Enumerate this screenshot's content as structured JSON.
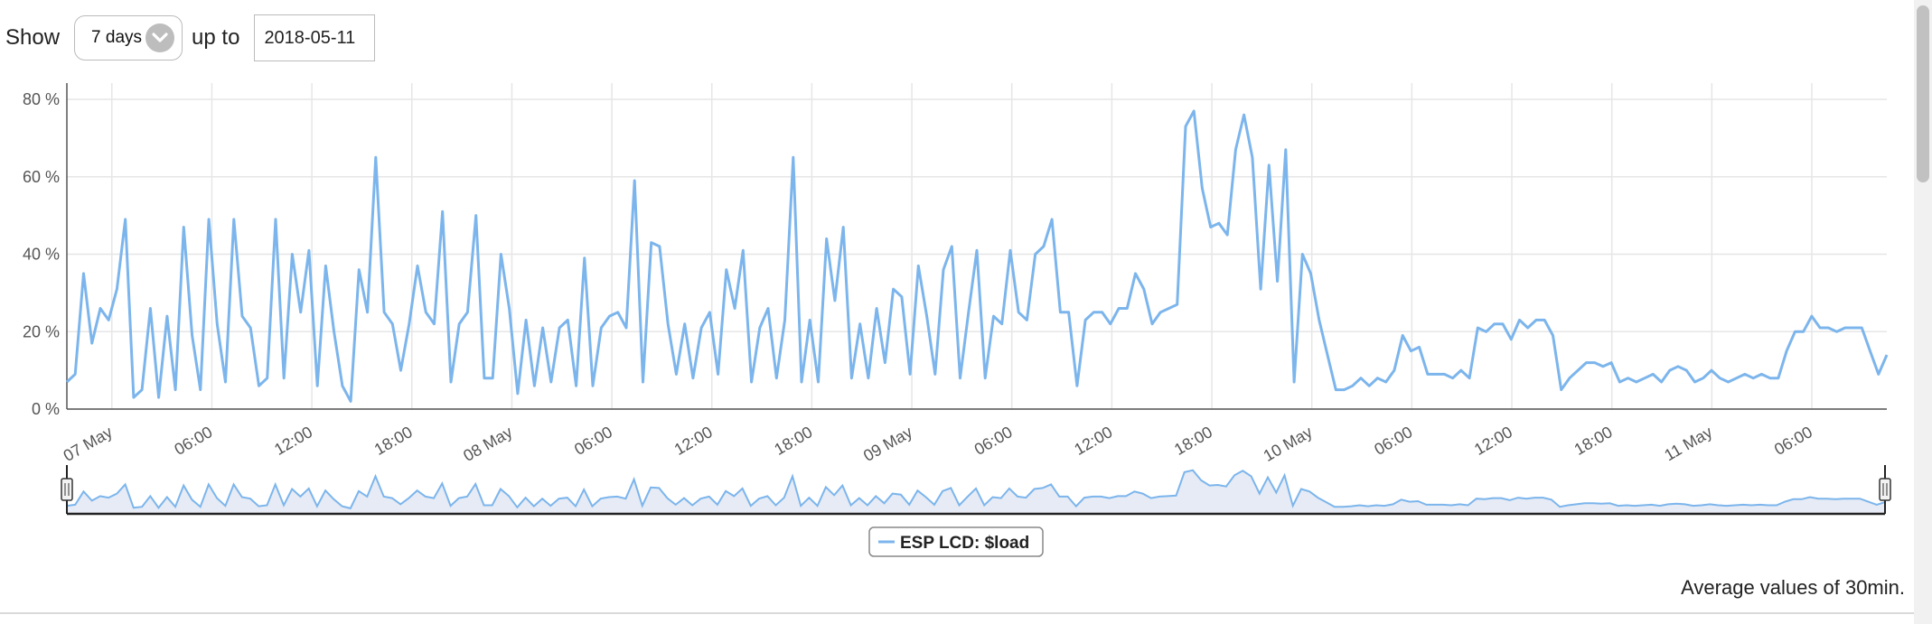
{
  "controls": {
    "show_label": "Show",
    "range_value": "7 days",
    "upto_label": "up to",
    "date_value": "2018-05-11"
  },
  "chart_data": {
    "type": "line",
    "title": "",
    "xlabel": "",
    "ylabel": "",
    "ylim": [
      0,
      80
    ],
    "y_ticks": [
      "0 %",
      "20 %",
      "40 %",
      "60 %",
      "80 %"
    ],
    "x_range_hours": [
      -2.7,
      106.5
    ],
    "x_ticks": [
      "07 May",
      "06:00",
      "12:00",
      "18:00",
      "08 May",
      "06:00",
      "12:00",
      "18:00",
      "09 May",
      "06:00",
      "12:00",
      "18:00",
      "10 May",
      "06:00",
      "12:00",
      "18:00",
      "11 May",
      "06:00"
    ],
    "grid": true,
    "legend_position": "bottom-center",
    "series": [
      {
        "name": "ESP LCD: $load",
        "color": "#7cb5ec",
        "values": [
          7,
          9,
          35,
          17,
          26,
          23,
          31,
          49,
          3,
          5,
          26,
          3,
          24,
          5,
          47,
          19,
          5,
          49,
          22,
          7,
          49,
          24,
          21,
          6,
          8,
          49,
          8,
          40,
          25,
          41,
          6,
          37,
          20,
          6,
          2,
          36,
          25,
          65,
          25,
          22,
          10,
          22,
          37,
          25,
          22,
          51,
          7,
          22,
          25,
          50,
          8,
          8,
          40,
          26,
          4,
          23,
          6,
          21,
          7,
          21,
          23,
          6,
          39,
          6,
          21,
          24,
          25,
          21,
          59,
          7,
          43,
          42,
          22,
          9,
          22,
          8,
          21,
          25,
          9,
          36,
          26,
          41,
          7,
          21,
          26,
          8,
          23,
          65,
          7,
          23,
          7,
          44,
          28,
          47,
          8,
          22,
          8,
          26,
          12,
          31,
          29,
          9,
          37,
          24,
          9,
          36,
          42,
          8,
          25,
          41,
          8,
          24,
          22,
          41,
          25,
          23,
          40,
          42,
          49,
          25,
          25,
          6,
          23,
          25,
          25,
          22,
          26,
          26,
          35,
          31,
          22,
          25,
          26,
          27,
          73,
          77,
          57,
          47,
          48,
          45,
          67,
          76,
          65,
          31,
          63,
          33,
          67,
          7,
          40,
          35,
          23,
          14,
          5,
          5,
          6,
          8,
          6,
          8,
          7,
          10,
          19,
          15,
          16,
          9,
          9,
          9,
          8,
          10,
          8,
          21,
          20,
          22,
          22,
          18,
          23,
          21,
          23,
          23,
          19,
          5,
          8,
          10,
          12,
          12,
          11,
          12,
          7,
          8,
          7,
          8,
          9,
          7,
          10,
          11,
          10,
          7,
          8,
          10,
          8,
          7,
          8,
          9,
          8,
          9,
          8,
          8,
          15,
          20,
          20,
          24,
          21,
          21,
          20,
          21,
          21,
          21,
          15,
          9,
          14
        ]
      }
    ],
    "navigator": true
  },
  "footer": {
    "note": "Average values of 30min."
  },
  "colors": {
    "series": "#7cb5ec",
    "navigator_fill": "#e6ebf5",
    "grid": "#e6e6e6",
    "axis": "#555555"
  },
  "icons": {
    "dropdown": "chevron-down-icon"
  }
}
